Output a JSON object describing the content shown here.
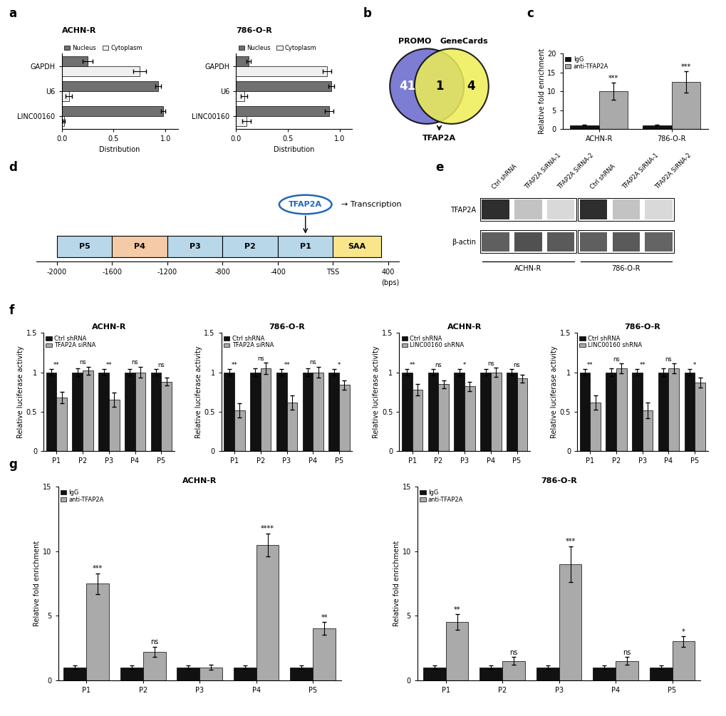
{
  "chart_data": [
    {
      "type": "bar",
      "orientation": "horizontal",
      "panel": "a",
      "title": "ACHN-R",
      "categories": [
        "LINC00160",
        "U6",
        "GAPDH"
      ],
      "series": [
        {
          "name": "Nucleus",
          "color": "#707070",
          "values": [
            0.98,
            0.93,
            0.25
          ],
          "errors": [
            0.02,
            0.03,
            0.05
          ]
        },
        {
          "name": "Cytoplasm",
          "color": "#f0f0f0",
          "values": [
            0.02,
            0.07,
            0.75
          ],
          "errors": [
            0.01,
            0.03,
            0.06
          ]
        }
      ],
      "xlabel": "Distribution",
      "xlim": [
        0,
        1.12
      ],
      "xticks": [
        {
          "value": 0,
          "label": "0.0"
        },
        {
          "value": 0.5,
          "label": "0.5"
        },
        {
          "value": 1,
          "label": "1.0"
        }
      ],
      "legend": "lower left"
    },
    {
      "type": "bar",
      "orientation": "horizontal",
      "title": "786-O-R",
      "categories": [
        "LINC00160",
        "U6",
        "GAPDH"
      ],
      "series": [
        {
          "name": "Nucleus",
          "color": "#707070",
          "values": [
            0.9,
            0.92,
            0.12
          ],
          "errors": [
            0.04,
            0.03,
            0.02
          ]
        },
        {
          "name": "Cytoplasm",
          "color": "#f0f0f0",
          "values": [
            0.1,
            0.08,
            0.88
          ],
          "errors": [
            0.04,
            0.03,
            0.04
          ]
        }
      ],
      "xlabel": "Distribution",
      "xlim": [
        0,
        1.12
      ],
      "xticks": [
        {
          "value": 0,
          "label": "0.0"
        },
        {
          "value": 0.5,
          "label": "0.5"
        },
        {
          "value": 1,
          "label": "1.0"
        }
      ],
      "legend": "lower left"
    },
    {
      "type": "venn",
      "panel": "b",
      "categories": [
        "PROMO",
        "GeneCards"
      ],
      "values": [
        41,
        4
      ],
      "overlap": 1,
      "overlap_label": "TFAP2A",
      "colors": [
        "#6666cc",
        "#eeee55"
      ]
    },
    {
      "type": "bar",
      "panel": "c",
      "categories": [
        "ACHN-R",
        "786-O-R"
      ],
      "series": [
        {
          "name": "IgG",
          "color": "#111111",
          "values": [
            1.0,
            1.0
          ],
          "errors": [
            0.15,
            0.15
          ]
        },
        {
          "name": "anti-TFAP2A",
          "color": "#aaaaaa",
          "values": [
            10.0,
            12.5
          ],
          "errors": [
            2.3,
            2.8
          ],
          "significance": [
            "***",
            "***"
          ]
        }
      ],
      "ylabel": "Relative fold enrichment",
      "ylim": [
        0,
        20
      ],
      "yticks": [
        0,
        5,
        10,
        15,
        20
      ],
      "legend": "upper left"
    },
    {
      "type": "diagram",
      "panel": "d",
      "segments": [
        {
          "label": "P5",
          "start": -2000,
          "width": 400,
          "color": "#b8d8ea"
        },
        {
          "label": "P4",
          "start": -1600,
          "width": 400,
          "color": "#f5cba7"
        },
        {
          "label": "P3",
          "start": -1200,
          "width": 400,
          "color": "#b8d8ea"
        },
        {
          "label": "P2",
          "start": -800,
          "width": 400,
          "color": "#b8d8ea"
        },
        {
          "label": "P1",
          "start": -400,
          "width": 400,
          "color": "#b8d8ea"
        },
        {
          "label": "SAA",
          "start": 0,
          "width": 350,
          "color": "#f9e68a"
        }
      ],
      "xlim": [
        -2150,
        480
      ],
      "xticks": [
        -2000,
        -1600,
        -1200,
        -800,
        -400,
        {
          "value": 0,
          "label": "TSS"
        },
        400
      ],
      "xlabel": "(bps)",
      "binding_site": "P1",
      "binding_label": "TFAP2A",
      "annotations": [
        "→ Transcription"
      ]
    },
    {
      "type": "blot",
      "panel": "e",
      "categories": [
        "Ctrl shRNA",
        "TFAP2A SiRNA-1",
        "TFAP2A SiRNA-2",
        "Ctrl shRNA",
        "TFAP2A SiRNA-1",
        "TFAP2A SiRNA-2"
      ],
      "groups": [
        "ACHN-R",
        "ACHN-R",
        "ACHN-R",
        "786-O-R",
        "786-O-R",
        "786-O-R"
      ],
      "series": [
        {
          "name": "TFAP2A",
          "values": [
            0.85,
            0.35,
            0.25,
            0.85,
            0.35,
            0.25
          ]
        },
        {
          "name": "β-actin",
          "values": [
            0.7,
            0.75,
            0.72,
            0.7,
            0.72,
            0.68
          ]
        }
      ]
    },
    {
      "type": "bar",
      "panel": "f",
      "title": "ACHN-R",
      "categories": [
        "P1",
        "P2",
        "P3",
        "P4",
        "P5"
      ],
      "series": [
        {
          "name": "Ctrl shRNA",
          "color": "#111111",
          "values": [
            1.0,
            1.0,
            1.0,
            1.0,
            1.0
          ],
          "errors": [
            0.04,
            0.05,
            0.04,
            0.04,
            0.04
          ]
        },
        {
          "name": "TFAP2A siRNA",
          "color": "#aaaaaa",
          "values": [
            0.68,
            1.02,
            0.65,
            1.0,
            0.88
          ],
          "errors": [
            0.07,
            0.05,
            0.09,
            0.07,
            0.05
          ]
        }
      ],
      "significance": [
        "**",
        "ns",
        "**",
        "ns",
        "ns"
      ],
      "ylabel": "Relative luciferase activity",
      "ylim": [
        0,
        1.5
      ],
      "yticks": [
        0,
        0.5,
        1,
        1.5
      ],
      "legend": "upper left"
    },
    {
      "type": "bar",
      "title": "786-O-R",
      "categories": [
        "P1",
        "P2",
        "P3",
        "P4",
        "P5"
      ],
      "series": [
        {
          "name": "Ctrl shRNA",
          "color": "#111111",
          "values": [
            1.0,
            1.0,
            1.0,
            1.0,
            1.0
          ],
          "errors": [
            0.04,
            0.05,
            0.04,
            0.05,
            0.04
          ]
        },
        {
          "name": "TFAP2A siRNA",
          "color": "#aaaaaa",
          "values": [
            0.52,
            1.05,
            0.62,
            1.0,
            0.84
          ],
          "errors": [
            0.09,
            0.07,
            0.09,
            0.07,
            0.06
          ]
        }
      ],
      "significance": [
        "**",
        "ns",
        "**",
        "ns",
        "*"
      ],
      "ylabel": "Relative luciferase activity",
      "ylim": [
        0,
        1.5
      ],
      "yticks": [
        0,
        0.5,
        1,
        1.5
      ],
      "legend": "upper left"
    },
    {
      "type": "bar",
      "title": "ACHN-R",
      "categories": [
        "P1",
        "P2",
        "P3",
        "P4",
        "P5"
      ],
      "series": [
        {
          "name": "Ctrl shRNA",
          "color": "#111111",
          "values": [
            1.0,
            1.0,
            1.0,
            1.0,
            1.0
          ],
          "errors": [
            0.04,
            0.04,
            0.04,
            0.04,
            0.04
          ]
        },
        {
          "name": "LINC00160 shRNA",
          "color": "#aaaaaa",
          "values": [
            0.78,
            0.85,
            0.82,
            1.0,
            0.92
          ],
          "errors": [
            0.07,
            0.05,
            0.06,
            0.06,
            0.05
          ]
        }
      ],
      "significance": [
        "**",
        "ns",
        "*",
        "ns",
        "ns"
      ],
      "ylabel": "Relative luciferase activity",
      "ylim": [
        0,
        1.5
      ],
      "yticks": [
        0,
        0.5,
        1,
        1.5
      ],
      "legend": "upper left"
    },
    {
      "type": "bar",
      "title": "786-O-R",
      "categories": [
        "P1",
        "P2",
        "P3",
        "P4",
        "P5"
      ],
      "series": [
        {
          "name": "Ctrl shRNA",
          "color": "#111111",
          "values": [
            1.0,
            1.0,
            1.0,
            1.0,
            1.0
          ],
          "errors": [
            0.04,
            0.05,
            0.04,
            0.05,
            0.04
          ]
        },
        {
          "name": "LINC00160 shRNA",
          "color": "#aaaaaa",
          "values": [
            0.62,
            1.05,
            0.52,
            1.05,
            0.87
          ],
          "errors": [
            0.09,
            0.06,
            0.1,
            0.06,
            0.06
          ]
        }
      ],
      "significance": [
        "**",
        "ns",
        "**",
        "ns",
        "*"
      ],
      "ylabel": "Relative luciferase activity",
      "ylim": [
        0,
        1.5
      ],
      "yticks": [
        0,
        0.5,
        1,
        1.5
      ],
      "legend": "upper left"
    },
    {
      "type": "bar",
      "panel": "g",
      "title": "ACHN-R",
      "categories": [
        "P1",
        "P2",
        "P3",
        "P4",
        "P5"
      ],
      "series": [
        {
          "name": "IgG",
          "color": "#111111",
          "values": [
            1.0,
            1.0,
            1.0,
            1.0,
            1.0
          ],
          "errors": [
            0.15,
            0.12,
            0.12,
            0.12,
            0.12
          ]
        },
        {
          "name": "anti-TFAP2A",
          "color": "#aaaaaa",
          "values": [
            7.5,
            2.2,
            1.0,
            10.5,
            4.0
          ],
          "errors": [
            0.8,
            0.4,
            0.2,
            0.9,
            0.5
          ],
          "significance": [
            "***",
            "ns",
            null,
            "****",
            "**"
          ]
        }
      ],
      "ylabel": "Relative fold enrichment",
      "ylim": [
        0,
        15
      ],
      "yticks": [
        0,
        5,
        10,
        15
      ],
      "legend": "upper left"
    },
    {
      "type": "bar",
      "title": "786-O-R",
      "categories": [
        "P1",
        "P2",
        "P3",
        "P4",
        "P5"
      ],
      "series": [
        {
          "name": "IgG",
          "color": "#111111",
          "values": [
            1.0,
            1.0,
            1.0,
            1.0,
            1.0
          ],
          "errors": [
            0.15,
            0.12,
            0.12,
            0.12,
            0.12
          ]
        },
        {
          "name": "anti-TFAP2A",
          "color": "#aaaaaa",
          "values": [
            4.5,
            1.5,
            9.0,
            1.5,
            3.0
          ],
          "errors": [
            0.6,
            0.3,
            1.4,
            0.3,
            0.4
          ],
          "significance": [
            "**",
            "ns",
            "***",
            "ns",
            "*"
          ]
        }
      ],
      "ylabel": "Relative fold enrichment",
      "ylim": [
        0,
        15
      ],
      "yticks": [
        0,
        5,
        10,
        15
      ],
      "legend": "upper left"
    }
  ]
}
